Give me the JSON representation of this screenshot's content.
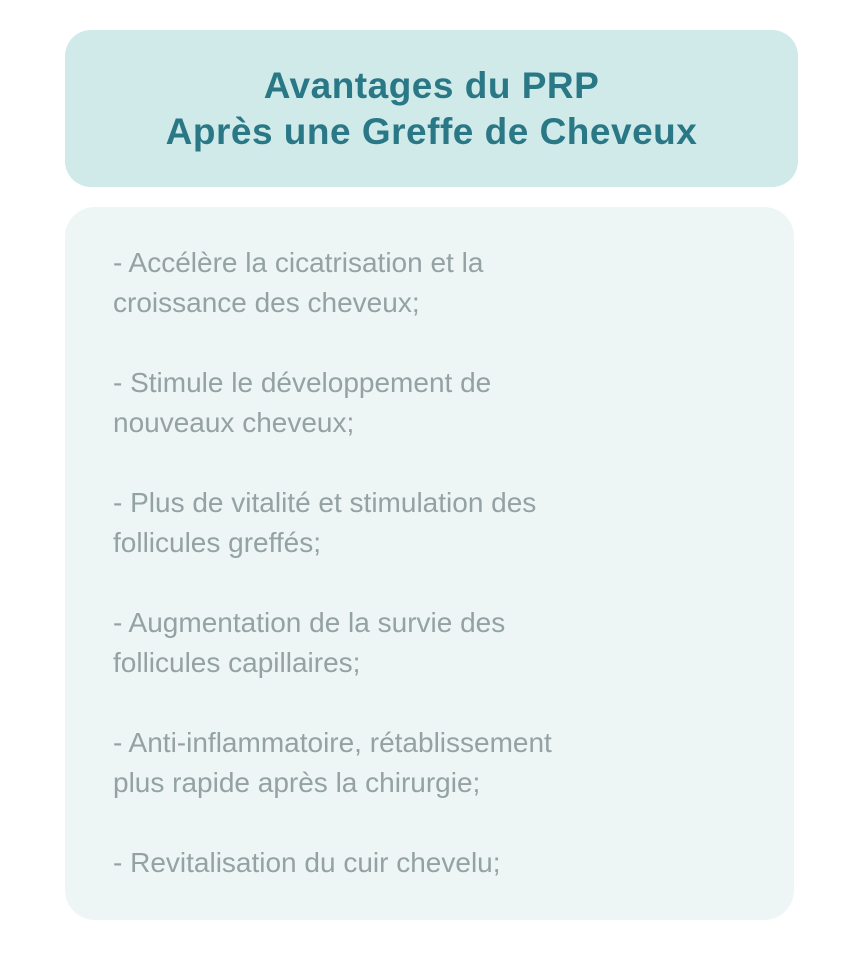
{
  "header": {
    "title_line1": "Avantages du PRP",
    "title_line2": "Après une Greffe de Cheveux",
    "background_color": "#cfeae9",
    "text_color": "#2a7886"
  },
  "benefits": {
    "background_color": "#edf5f5",
    "text_color": "#94a2a3",
    "items": [
      {
        "lines": [
          "- Accélère la cicatrisation et la",
          "croissance des cheveux;"
        ]
      },
      {
        "lines": [
          "- Stimule le développement de",
          "nouveaux cheveux;"
        ]
      },
      {
        "lines": [
          "- Plus de vitalité et stimulation des",
          "follicules greffés;"
        ]
      },
      {
        "lines": [
          "- Augmentation de la survie des",
          "follicules capillaires;"
        ]
      },
      {
        "lines": [
          "- Anti-inflammatoire, rétablissement",
          "plus rapide après la chirurgie;"
        ]
      },
      {
        "lines": [
          "- Revitalisation du cuir chevelu;"
        ]
      }
    ]
  },
  "page": {
    "background_color": "#ffffff"
  }
}
